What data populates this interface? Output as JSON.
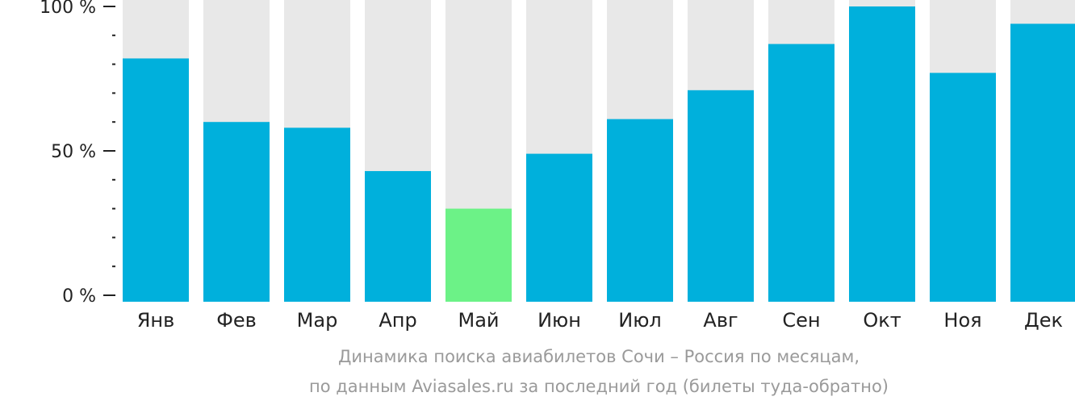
{
  "chart_data": {
    "type": "bar",
    "categories": [
      "Янв",
      "Фев",
      "Мар",
      "Апр",
      "Май",
      "Июн",
      "Июл",
      "Авг",
      "Сен",
      "Окт",
      "Ноя",
      "Дек"
    ],
    "values": [
      82,
      60,
      58,
      43,
      30,
      49,
      61,
      71,
      87,
      100,
      77,
      94
    ],
    "ylim": [
      0,
      100
    ],
    "yticks": [
      {
        "value": 0,
        "label": "0 %"
      },
      {
        "value": 50,
        "label": "50 %"
      },
      {
        "value": 100,
        "label": "100 %"
      }
    ],
    "grid": false,
    "colors": {
      "bar": "#00b0dc",
      "highlight": "#6cf287",
      "background_bar": "#e8e8e8",
      "axis": "#222222"
    },
    "highlight_category": "Май"
  },
  "caption": {
    "line1": "Динамика поиска авиабилетов Сочи – Россия по месяцам,",
    "line2": "по данным Aviasales.ru за последний год (билеты туда-обратно)"
  }
}
